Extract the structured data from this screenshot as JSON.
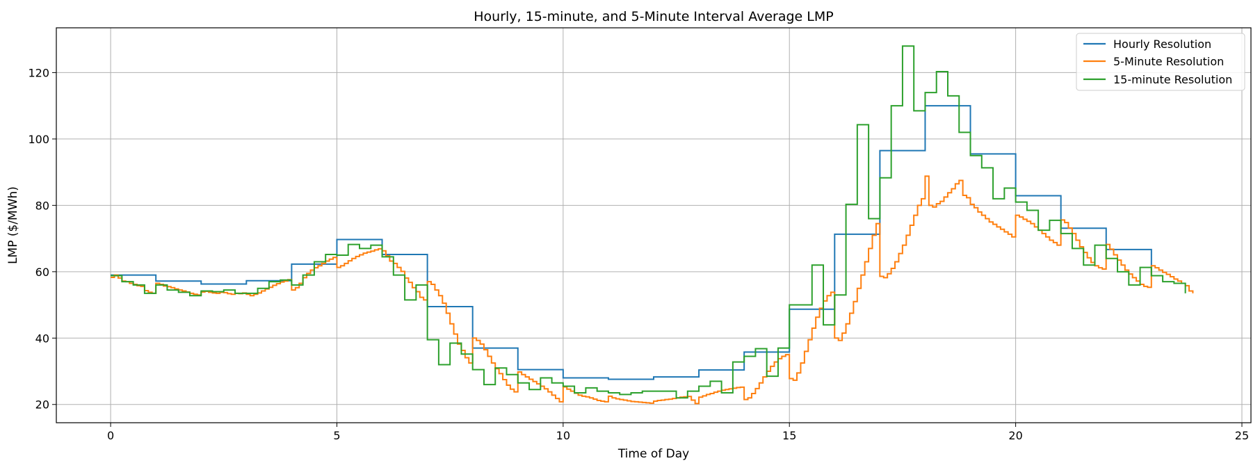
{
  "chart_data": {
    "type": "line",
    "step": "post",
    "title": "Hourly, 15-minute, and 5-Minute Interval Average LMP",
    "xlabel": "Time of Day",
    "ylabel": "LMP ($/MWh)",
    "xlim": [
      -1.2,
      25.2
    ],
    "ylim": [
      14.5,
      133.5
    ],
    "xticks": [
      0,
      5,
      10,
      15,
      20,
      25
    ],
    "yticks": [
      20,
      40,
      60,
      80,
      100,
      120
    ],
    "grid": true,
    "legend": {
      "position": "top-right"
    },
    "series": [
      {
        "name": "Hourly Resolution",
        "color": "#1f77b4",
        "interval_hours": 1,
        "values": [
          59,
          57.2,
          56.3,
          57.3,
          62.3,
          69.7,
          65.2,
          49.5,
          37,
          30.5,
          28,
          27.6,
          28.3,
          30.4,
          35.8,
          48.7,
          71.3,
          96.5,
          110,
          95.5,
          82.9,
          73.1,
          66.7,
          58.5
        ]
      },
      {
        "name": "5-Minute Resolution",
        "color": "#ff7f0e",
        "interval_hours": 0.08333,
        "values": [
          58.3,
          59,
          58.1,
          57.2,
          57,
          56.5,
          56.2,
          55.8,
          55.6,
          54.3,
          53.8,
          53.5,
          56.5,
          56.2,
          55.7,
          55.5,
          55.2,
          54.8,
          54.5,
          54.2,
          53.9,
          53.5,
          53.2,
          53,
          53.9,
          54.1,
          53.8,
          53.6,
          53.5,
          53.8,
          53.7,
          53.4,
          53.2,
          53.5,
          53.4,
          53.6,
          53.2,
          52.8,
          53.2,
          53.6,
          54.2,
          54.8,
          55.3,
          55.9,
          56.4,
          56.9,
          57.2,
          57.6,
          54.5,
          55.2,
          56.5,
          58.2,
          59.5,
          60.5,
          61.2,
          61.8,
          62.5,
          63.2,
          63.8,
          64.3,
          61.3,
          61.8,
          62.5,
          63.3,
          64,
          64.6,
          65.1,
          65.6,
          65.9,
          66.2,
          66.6,
          66.9,
          66.3,
          64.8,
          63.2,
          62.5,
          61.3,
          60.1,
          58.1,
          56.8,
          55.2,
          54,
          52.3,
          51.5,
          57,
          56.2,
          54.5,
          52.8,
          50.5,
          47.5,
          44.3,
          41.2,
          38.2,
          36.3,
          34.1,
          32.5,
          40,
          39.3,
          38.2,
          36.5,
          34.5,
          32.5,
          30.8,
          29.3,
          27.5,
          25.8,
          24.6,
          23.8,
          29.8,
          29,
          28.3,
          27.6,
          26.9,
          26.2,
          25.5,
          24.7,
          23.8,
          22.8,
          21.8,
          20.8,
          25.3,
          24.6,
          24,
          23.4,
          22.8,
          22.5,
          22.3,
          22,
          21.6,
          21.2,
          21,
          20.8,
          22.5,
          22,
          21.7,
          21.5,
          21.3,
          21.1,
          20.9,
          20.8,
          20.7,
          20.6,
          20.5,
          20.4,
          21,
          21.2,
          21.3,
          21.5,
          21.6,
          21.8,
          22,
          22.2,
          22.3,
          22.4,
          21.3,
          20.3,
          22.2,
          22.6,
          23,
          23.3,
          23.7,
          24,
          24.3,
          24.5,
          24.7,
          24.9,
          25.1,
          25.2,
          21.5,
          22,
          23.3,
          24.8,
          26.5,
          28.3,
          30,
          31.5,
          32.8,
          33.8,
          34.5,
          35,
          27.8,
          27.3,
          29.5,
          32.5,
          36,
          39.5,
          43,
          46.3,
          49,
          51.2,
          52.8,
          53.8,
          40,
          39.3,
          41.5,
          44.3,
          47.5,
          51,
          55,
          59,
          63,
          67,
          71,
          74.5,
          58.6,
          58.2,
          59.4,
          61,
          63,
          65.5,
          68,
          71,
          74,
          77,
          80,
          82,
          88.8,
          80,
          79.5,
          80.5,
          81.2,
          82.5,
          83.8,
          85,
          86.5,
          87.5,
          83,
          82.3,
          80.3,
          79.3,
          78,
          77,
          76,
          75,
          74.3,
          73.5,
          72.8,
          72,
          71.3,
          70.5,
          77,
          76.5,
          75.8,
          75.2,
          74.5,
          73.5,
          72.5,
          71.5,
          70.5,
          69.5,
          68.8,
          68,
          75.6,
          74.8,
          73.2,
          71.5,
          69.5,
          67.5,
          65.8,
          64.2,
          62.8,
          61.8,
          61.2,
          60.8,
          68.2,
          66.8,
          65.1,
          63.5,
          62,
          60.5,
          59.3,
          58.2,
          57.2,
          56.2,
          55.6,
          55.3,
          61.8,
          61.2,
          60.5,
          59.8,
          59.2,
          58.5,
          57.8,
          57.2,
          56.5,
          55.8,
          54.2,
          53.5
        ]
      },
      {
        "name": "15-minute Resolution",
        "color": "#2ca02c",
        "interval_hours": 0.25,
        "values": [
          58.8,
          57,
          56,
          53.5,
          56,
          54.5,
          53.8,
          52.8,
          54.2,
          54,
          54.5,
          53.5,
          53.5,
          55,
          57,
          57.5,
          56,
          59,
          63,
          65.2,
          65,
          68.2,
          67,
          68,
          64.5,
          59,
          51.5,
          56,
          39.5,
          32,
          38.5,
          35.2,
          30.5,
          26,
          31,
          29,
          26.5,
          24.5,
          28,
          26.5,
          25.5,
          23.5,
          25,
          24,
          23.5,
          23,
          23.5,
          24,
          24,
          24,
          22,
          24,
          25.5,
          27,
          23.5,
          32.8,
          34.5,
          36.8,
          28.5,
          37,
          50,
          50,
          62,
          44,
          53,
          80.3,
          104.3,
          76,
          88.3,
          110,
          128,
          108.5,
          114,
          120.3,
          113,
          102,
          95,
          91.3,
          82,
          85.2,
          81,
          78.5,
          72.5,
          75.5,
          71.5,
          67,
          62,
          68,
          64,
          60,
          56,
          61.3,
          58.8,
          57,
          56.5,
          53.5
        ]
      }
    ]
  }
}
